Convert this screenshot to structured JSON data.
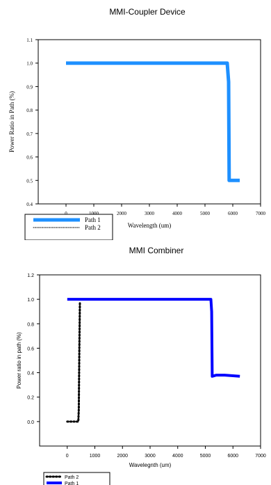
{
  "chart_data": [
    {
      "type": "line",
      "title": "MMI-Coupler Device",
      "xlabel": "Wavelength (um)",
      "ylabel": "Power Ratio in Path (%)",
      "xlim": [
        -1000,
        7000
      ],
      "ylim": [
        0.4,
        1.1
      ],
      "x_ticks": [
        "0",
        "1000",
        "2000",
        "3000",
        "4000",
        "5000",
        "6000",
        "7000"
      ],
      "y_ticks": [
        "0.4",
        "0.5",
        "0.6",
        "0.7",
        "0.8",
        "0.9",
        "1.0",
        "1.1"
      ],
      "legend": "bottom-left",
      "series": [
        {
          "name": "Path 1",
          "color": "#1e90ff",
          "style": "solid",
          "x": [
            0,
            5800,
            5850,
            5870,
            6250
          ],
          "y": [
            1.0,
            1.0,
            0.92,
            0.5,
            0.5
          ]
        },
        {
          "name": "Path 2",
          "color": "#000000",
          "style": "dotted",
          "x": [],
          "y": []
        }
      ]
    },
    {
      "type": "line",
      "title": "MMI Combiner",
      "xlabel": "Wavelegnth (um)",
      "ylabel": "Power ratio in path (%)",
      "xlim": [
        -1000,
        7000
      ],
      "ylim": [
        -0.2,
        1.2
      ],
      "x_ticks": [
        "0",
        "1000",
        "2000",
        "3000",
        "4000",
        "5000",
        "6000",
        "7000"
      ],
      "y_ticks": [
        "0.0",
        "0.2",
        "0.4",
        "0.6",
        "0.8",
        "1.0",
        "1.2"
      ],
      "legend": "bottom-left",
      "series": [
        {
          "name": "Path 2",
          "color": "#000000",
          "style": "dotted",
          "x": [
            0,
            400,
            420,
            440,
            460
          ],
          "y": [
            0.0,
            0.0,
            0.1,
            0.6,
            0.98
          ]
        },
        {
          "name": "Path 1",
          "color": "#0000ff",
          "style": "solid",
          "x": [
            0,
            5200,
            5230,
            5250,
            5400,
            5700,
            6000,
            6250
          ],
          "y": [
            1.0,
            1.0,
            0.9,
            0.37,
            0.38,
            0.38,
            0.375,
            0.37
          ]
        }
      ]
    }
  ]
}
